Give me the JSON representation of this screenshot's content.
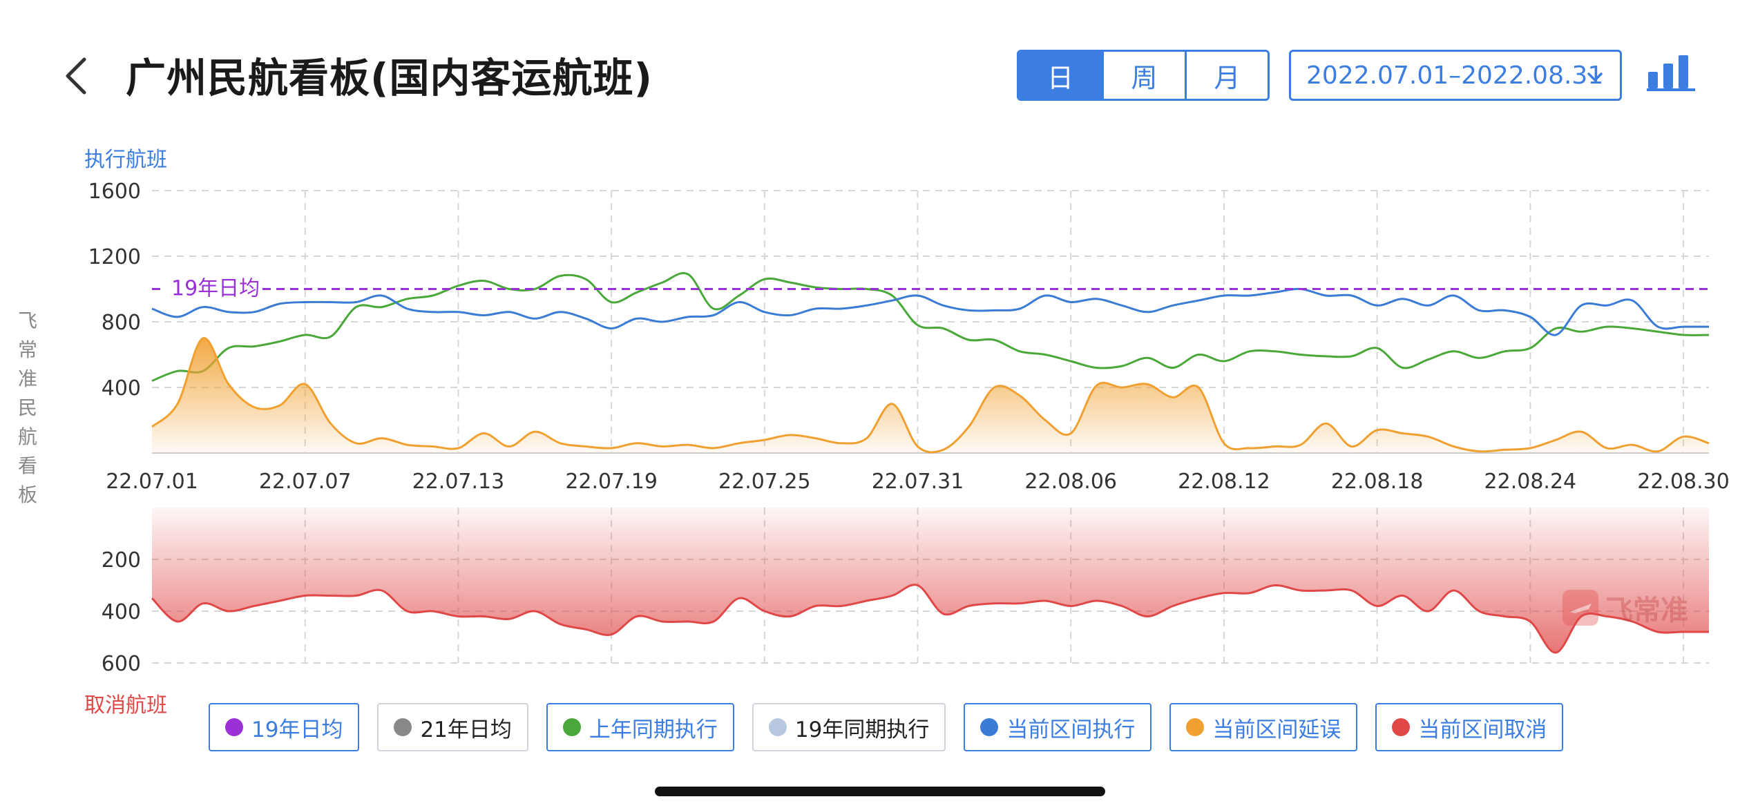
{
  "header": {
    "title": "广州民航看板(国内客运航班)",
    "tabs": [
      {
        "label": "日",
        "active": true
      },
      {
        "label": "周",
        "active": false
      },
      {
        "label": "月",
        "active": false
      }
    ],
    "date_range": "2022.07.01–2022.08.31"
  },
  "icons": {
    "back": "back-chevron-icon",
    "dropdown": "chevron-down-icon",
    "chart_type": "bar-chart-icon"
  },
  "side_label": "飞常准民航看板",
  "watermark": "飞常准",
  "colors": {
    "accent": "#3b7de0",
    "avg19": "#9b30d9",
    "last_year": "#4aa83a",
    "current_exec": "#3a7bd5",
    "delay": "#f0a030",
    "cancel": "#e04848",
    "avg21": "#888888",
    "exec19": "#b8c8e0"
  },
  "chart_data": {
    "type": "line",
    "top": {
      "ylabel": "执行航班",
      "yticks": [
        400,
        800,
        1200,
        1600
      ],
      "ylim": [
        0,
        1600
      ],
      "grid": true,
      "reference_line": {
        "label": "19年日均",
        "value": 1000
      }
    },
    "bottom": {
      "ylabel": "取消航班",
      "yticks": [
        200,
        400,
        600
      ],
      "ylim": [
        0,
        600
      ],
      "inverted": true,
      "grid": true
    },
    "x": [
      "22.07.01",
      "22.07.02",
      "22.07.03",
      "22.07.04",
      "22.07.05",
      "22.07.06",
      "22.07.07",
      "22.07.08",
      "22.07.09",
      "22.07.10",
      "22.07.11",
      "22.07.12",
      "22.07.13",
      "22.07.14",
      "22.07.15",
      "22.07.16",
      "22.07.17",
      "22.07.18",
      "22.07.19",
      "22.07.20",
      "22.07.21",
      "22.07.22",
      "22.07.23",
      "22.07.24",
      "22.07.25",
      "22.07.26",
      "22.07.27",
      "22.07.28",
      "22.07.29",
      "22.07.30",
      "22.07.31",
      "22.08.01",
      "22.08.02",
      "22.08.03",
      "22.08.04",
      "22.08.05",
      "22.08.06",
      "22.08.07",
      "22.08.08",
      "22.08.09",
      "22.08.10",
      "22.08.11",
      "22.08.12",
      "22.08.13",
      "22.08.14",
      "22.08.15",
      "22.08.16",
      "22.08.17",
      "22.08.18",
      "22.08.19",
      "22.08.20",
      "22.08.21",
      "22.08.22",
      "22.08.23",
      "22.08.24",
      "22.08.25",
      "22.08.26",
      "22.08.27",
      "22.08.28",
      "22.08.29",
      "22.08.30",
      "22.08.31"
    ],
    "xtick_labels": [
      "22.07.01",
      "22.07.07",
      "22.07.13",
      "22.07.19",
      "22.07.25",
      "22.07.31",
      "22.08.06",
      "22.08.12",
      "22.08.18",
      "22.08.24",
      "22.08.30"
    ],
    "series": [
      {
        "name": "上年同期执行",
        "color": "#4aa83a",
        "panel": "top",
        "values": [
          440,
          500,
          500,
          640,
          650,
          680,
          720,
          710,
          890,
          890,
          940,
          960,
          1020,
          1050,
          1000,
          1000,
          1080,
          1060,
          920,
          980,
          1040,
          1090,
          880,
          960,
          1060,
          1040,
          1010,
          1000,
          1000,
          960,
          780,
          760,
          690,
          690,
          620,
          600,
          560,
          520,
          530,
          580,
          520,
          600,
          560,
          620,
          620,
          600,
          590,
          590,
          640,
          520,
          570,
          620,
          580,
          620,
          640,
          760,
          740,
          770,
          760,
          740,
          720,
          720
        ]
      },
      {
        "name": "当前区间执行",
        "color": "#3a7bd5",
        "panel": "top",
        "values": [
          880,
          830,
          890,
          860,
          860,
          910,
          920,
          920,
          920,
          960,
          880,
          860,
          860,
          840,
          860,
          820,
          860,
          820,
          760,
          820,
          800,
          830,
          840,
          920,
          860,
          840,
          880,
          880,
          900,
          930,
          960,
          900,
          870,
          870,
          880,
          960,
          920,
          940,
          900,
          860,
          900,
          930,
          960,
          960,
          980,
          1000,
          960,
          960,
          900,
          940,
          900,
          960,
          870,
          870,
          830,
          720,
          900,
          900,
          930,
          770,
          770,
          770
        ]
      },
      {
        "name": "当前区间延误",
        "color": "#f0a030",
        "panel": "top",
        "values": [
          160,
          300,
          700,
          420,
          280,
          290,
          420,
          180,
          60,
          90,
          50,
          40,
          30,
          120,
          40,
          130,
          60,
          40,
          30,
          60,
          40,
          50,
          30,
          60,
          80,
          110,
          90,
          60,
          90,
          300,
          40,
          20,
          160,
          400,
          350,
          200,
          120,
          410,
          400,
          420,
          340,
          400,
          60,
          30,
          40,
          50,
          180,
          40,
          140,
          120,
          100,
          40,
          10,
          20,
          30,
          80,
          130,
          30,
          50,
          10,
          100,
          60
        ]
      },
      {
        "name": "当前区间取消",
        "color": "#e04848",
        "panel": "bottom",
        "values": [
          350,
          440,
          370,
          400,
          380,
          360,
          340,
          340,
          340,
          320,
          400,
          400,
          420,
          420,
          430,
          400,
          450,
          470,
          490,
          420,
          440,
          440,
          440,
          350,
          400,
          420,
          380,
          380,
          360,
          340,
          300,
          410,
          380,
          370,
          370,
          360,
          380,
          360,
          380,
          420,
          380,
          350,
          330,
          330,
          300,
          320,
          320,
          320,
          380,
          340,
          400,
          320,
          400,
          420,
          440,
          560,
          420,
          420,
          440,
          480,
          480,
          480
        ]
      }
    ],
    "legend": [
      {
        "label": "19年日均",
        "color": "#9b30d9",
        "active": true
      },
      {
        "label": "21年日均",
        "color": "#888888",
        "active": false
      },
      {
        "label": "上年同期执行",
        "color": "#4aa83a",
        "active": true
      },
      {
        "label": "19年同期执行",
        "color": "#b8c8e0",
        "active": false
      },
      {
        "label": "当前区间执行",
        "color": "#3a7bd5",
        "active": true
      },
      {
        "label": "当前区间延误",
        "color": "#f0a030",
        "active": true
      },
      {
        "label": "当前区间取消",
        "color": "#e04848",
        "active": true
      }
    ]
  }
}
